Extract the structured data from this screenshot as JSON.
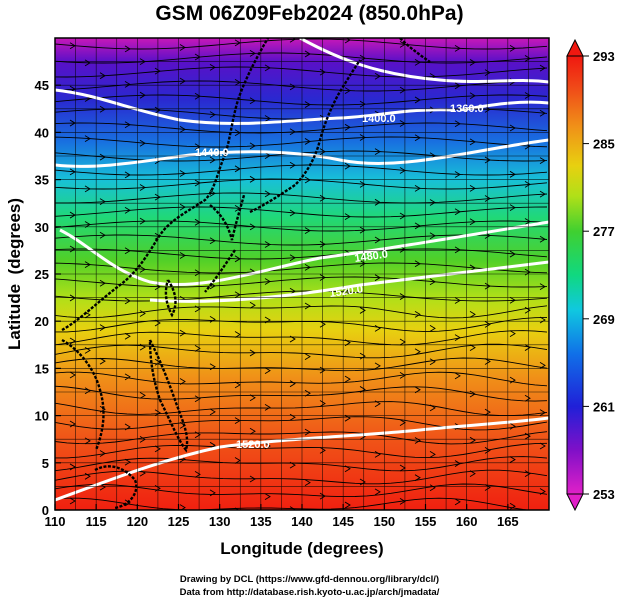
{
  "title": "GSM 06Z09Feb2024 (850.0hPa)",
  "x_axis": {
    "label": "Longitude (degrees)",
    "ticks": [
      "110",
      "115",
      "120",
      "125",
      "130",
      "135",
      "140",
      "145",
      "150",
      "155",
      "160",
      "165"
    ],
    "range": [
      110,
      170
    ]
  },
  "y_axis": {
    "label": "Latitude  (degrees)",
    "ticks": [
      "0",
      "5",
      "10",
      "15",
      "20",
      "25",
      "30",
      "35",
      "40",
      "45"
    ],
    "range": [
      0,
      50
    ]
  },
  "colorbar": {
    "ticks": [
      "253",
      "261",
      "269",
      "277",
      "285",
      "293"
    ],
    "range": [
      253,
      293
    ],
    "colors": [
      "#e020c8",
      "#6a0cc8",
      "#2020d8",
      "#1060e8",
      "#10b0e0",
      "#10d890",
      "#30d030",
      "#90e020",
      "#d0e010",
      "#f0c010",
      "#f08010",
      "#f04010",
      "#f01010"
    ]
  },
  "contour_labels": [
    "1360.0",
    "1400.0",
    "1440.0",
    "1480.0",
    "1520.0",
    "1520.0"
  ],
  "credits": {
    "line1": "Drawing by DCL (https://www.gfd-dennou.org/library/dcl/)",
    "line2": "Data from http://database.rish.kyoto-u.ac.jp/arch/jmadata/"
  }
}
